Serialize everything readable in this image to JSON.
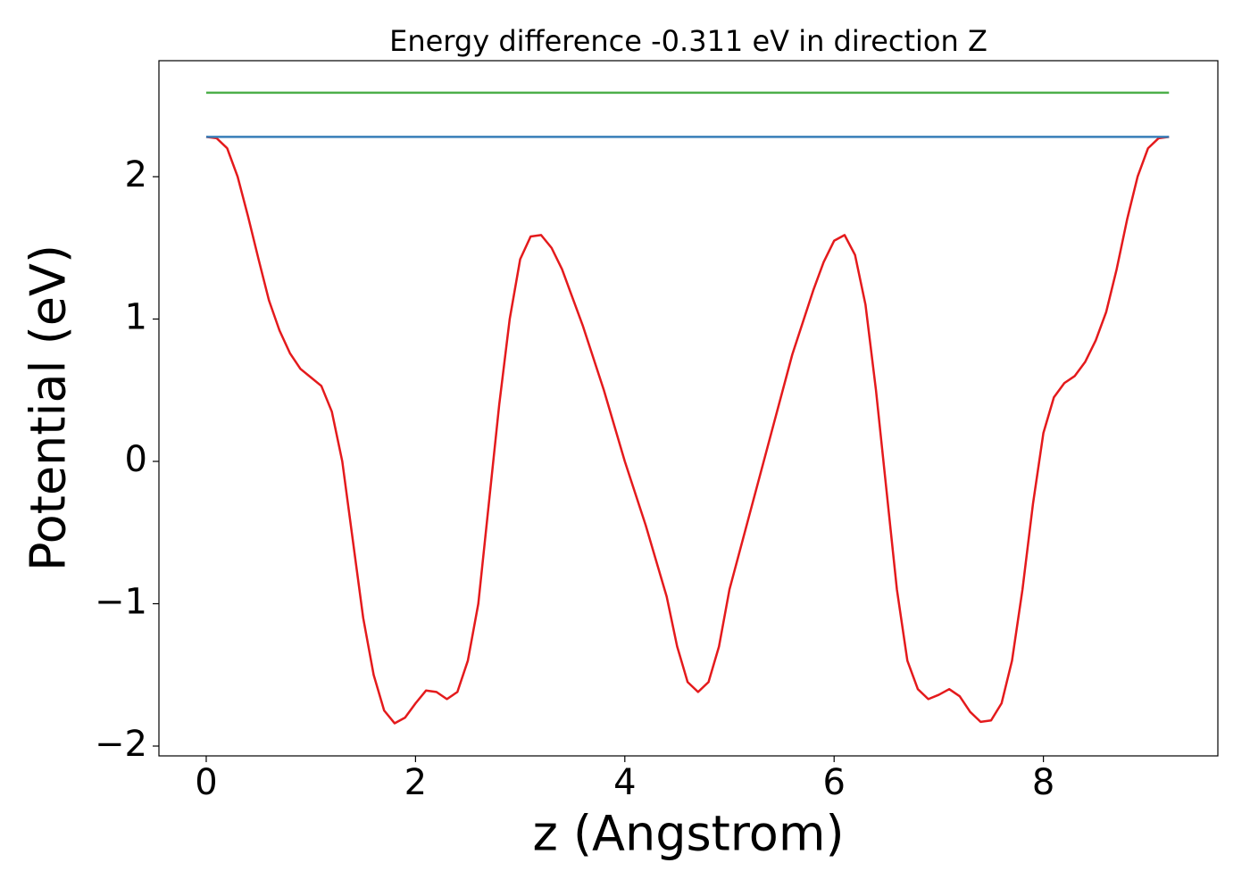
{
  "chart_data": {
    "type": "line",
    "title": "Energy difference -0.311 eV in direction Z",
    "xlabel": "z (Angstrom)",
    "ylabel": "Potential (eV)",
    "xlim": [
      -0.452,
      9.667
    ],
    "ylim": [
      -2.069,
      2.815
    ],
    "xticks": [
      0,
      2,
      4,
      6,
      8
    ],
    "yticks": [
      {
        "value": -2,
        "label": "−2"
      },
      {
        "value": -1,
        "label": "−1"
      },
      0,
      1,
      2
    ],
    "grid": false,
    "series": [
      {
        "color": "#e41a1c",
        "x": [
          0,
          0.1,
          0.2,
          0.3,
          0.4,
          0.5,
          0.6,
          0.7,
          0.8,
          0.9,
          1.0,
          1.1,
          1.2,
          1.3,
          1.4,
          1.5,
          1.6,
          1.7,
          1.8,
          1.9,
          2.0,
          2.1,
          2.2,
          2.3,
          2.4,
          2.5,
          2.6,
          2.7,
          2.8,
          2.9,
          3.0,
          3.1,
          3.2,
          3.3,
          3.4,
          3.6,
          3.8,
          4.0,
          4.2,
          4.4,
          4.5,
          4.6,
          4.7,
          4.8,
          4.9,
          5.0,
          5.2,
          5.4,
          5.6,
          5.8,
          5.9,
          6.0,
          6.1,
          6.2,
          6.3,
          6.4,
          6.5,
          6.6,
          6.7,
          6.8,
          6.9,
          7.0,
          7.1,
          7.2,
          7.3,
          7.4,
          7.5,
          7.6,
          7.7,
          7.8,
          7.9,
          8.0,
          8.1,
          8.2,
          8.3,
          8.4,
          8.5,
          8.6,
          8.7,
          8.8,
          8.9,
          9.0,
          9.1,
          9.2
        ],
        "values": [
          2.28,
          2.27,
          2.2,
          2.0,
          1.72,
          1.42,
          1.13,
          0.92,
          0.76,
          0.65,
          0.59,
          0.53,
          0.35,
          0.0,
          -0.55,
          -1.1,
          -1.5,
          -1.75,
          -1.84,
          -1.8,
          -1.7,
          -1.61,
          -1.62,
          -1.67,
          -1.62,
          -1.4,
          -1.0,
          -0.3,
          0.4,
          1.0,
          1.42,
          1.58,
          1.59,
          1.5,
          1.35,
          0.95,
          0.5,
          0.0,
          -0.45,
          -0.95,
          -1.3,
          -1.55,
          -1.62,
          -1.55,
          -1.3,
          -0.9,
          -0.35,
          0.2,
          0.75,
          1.2,
          1.4,
          1.55,
          1.59,
          1.45,
          1.1,
          0.5,
          -0.2,
          -0.9,
          -1.4,
          -1.6,
          -1.67,
          -1.64,
          -1.6,
          -1.65,
          -1.76,
          -1.83,
          -1.82,
          -1.7,
          -1.4,
          -0.9,
          -0.3,
          0.2,
          0.45,
          0.55,
          0.6,
          0.7,
          0.85,
          1.05,
          1.35,
          1.7,
          2.0,
          2.2,
          2.27,
          2.28
        ]
      },
      {
        "color": "#377eb8",
        "x": [
          0,
          9.2
        ],
        "values": [
          2.28,
          2.28
        ]
      },
      {
        "color": "#4daf4a",
        "x": [
          0,
          9.2
        ],
        "values": [
          2.59,
          2.59
        ]
      }
    ]
  }
}
